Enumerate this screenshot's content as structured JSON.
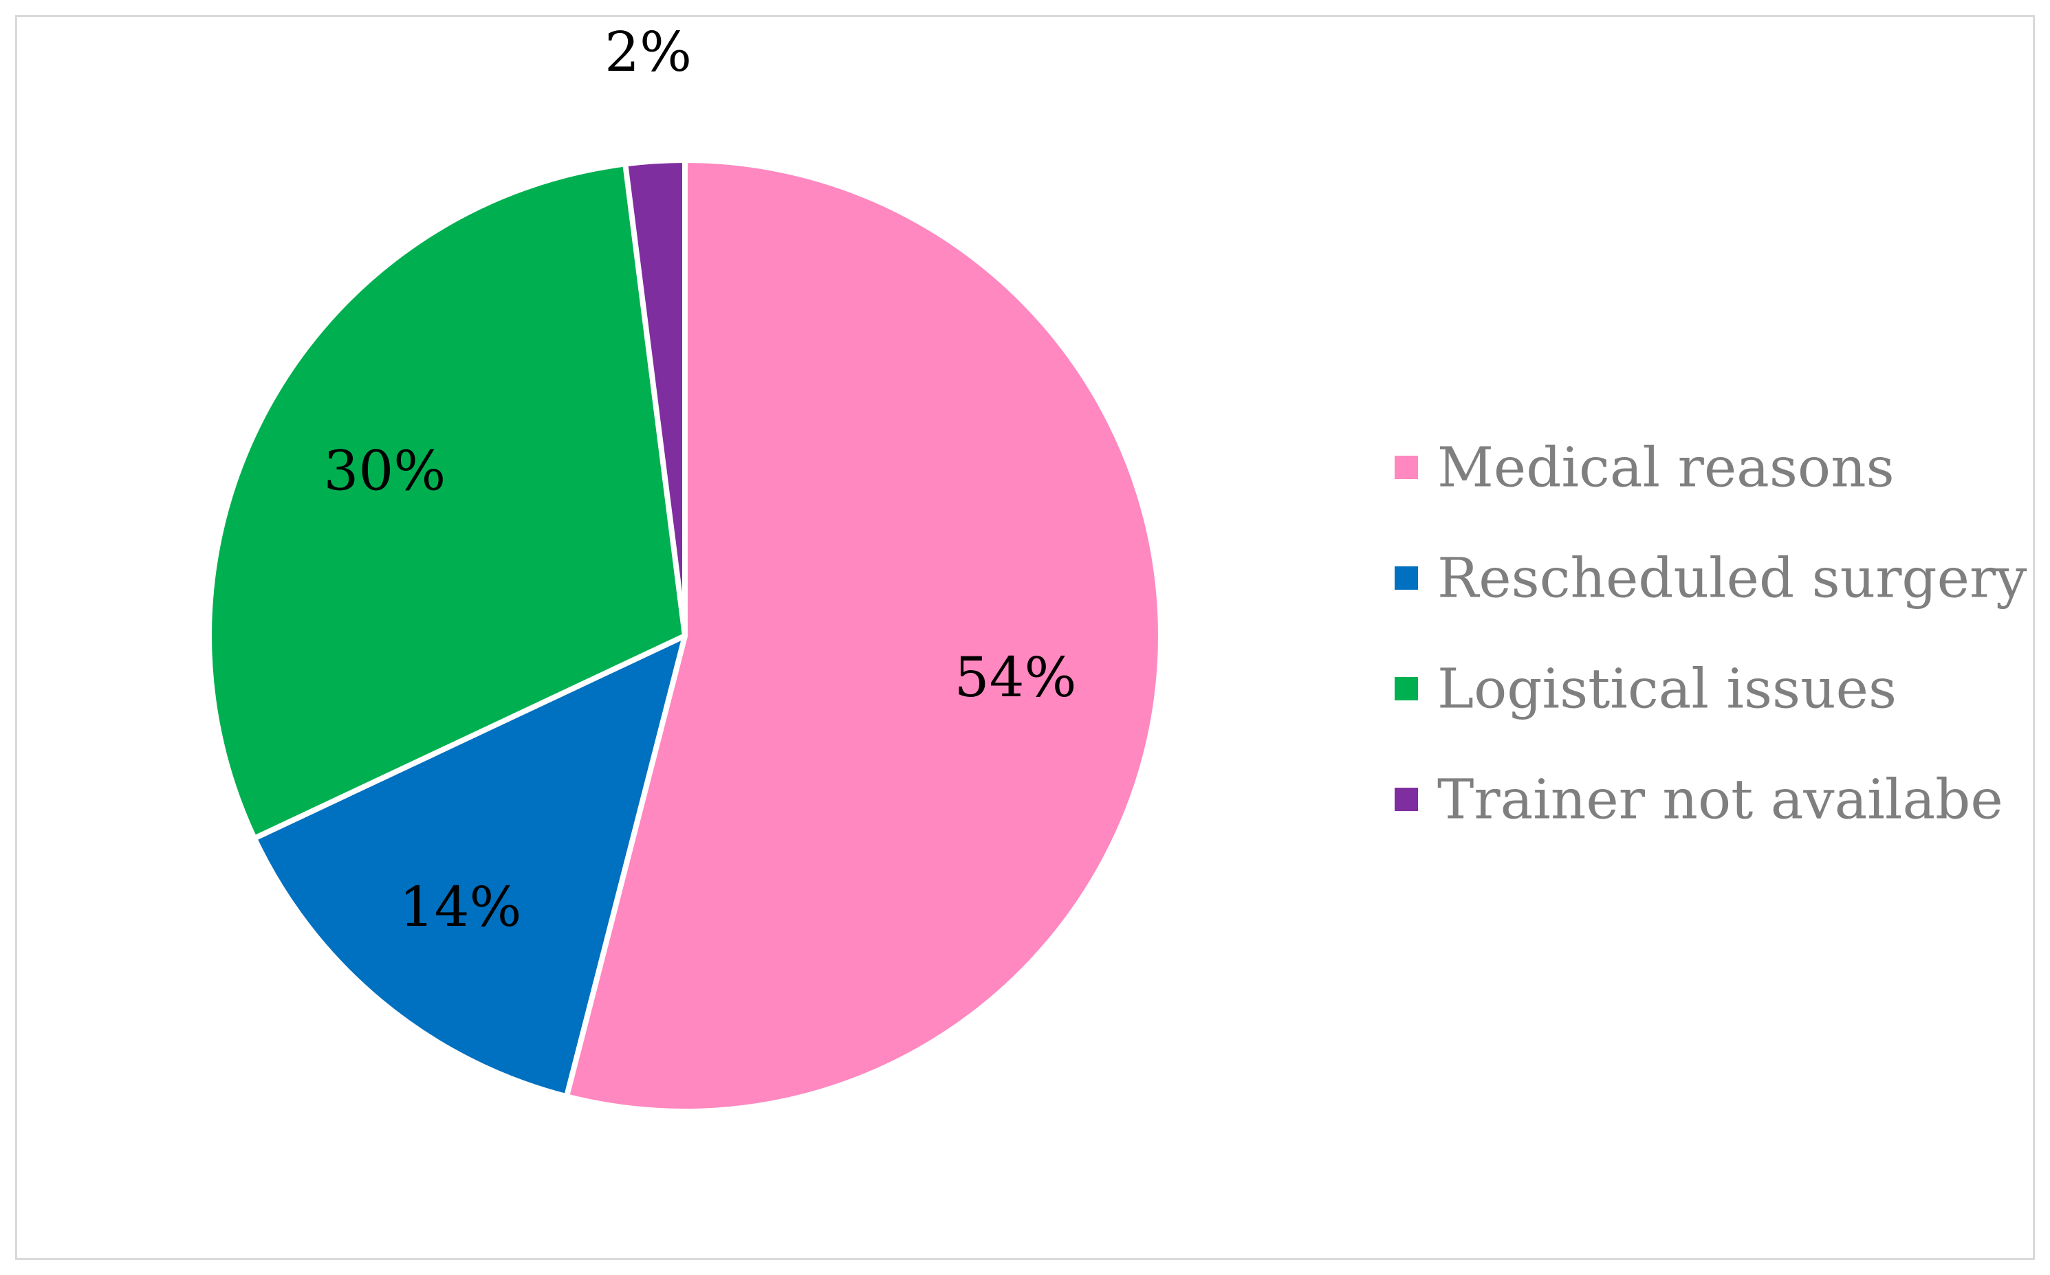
{
  "chart_data": {
    "type": "pie",
    "title": "",
    "categories": [
      "Medical reasons",
      "Rescheduled surgery",
      "Logistical issues",
      "Trainer not availabe"
    ],
    "values": [
      54,
      14,
      30,
      2
    ],
    "labels": [
      "54%",
      "14%",
      "30%",
      "2%"
    ],
    "colors": [
      "#ff88c0",
      "#0070c0",
      "#00b050",
      "#7f2ea0"
    ],
    "legend_position": "right",
    "start_angle": "12 o'clock",
    "direction": "clockwise"
  }
}
